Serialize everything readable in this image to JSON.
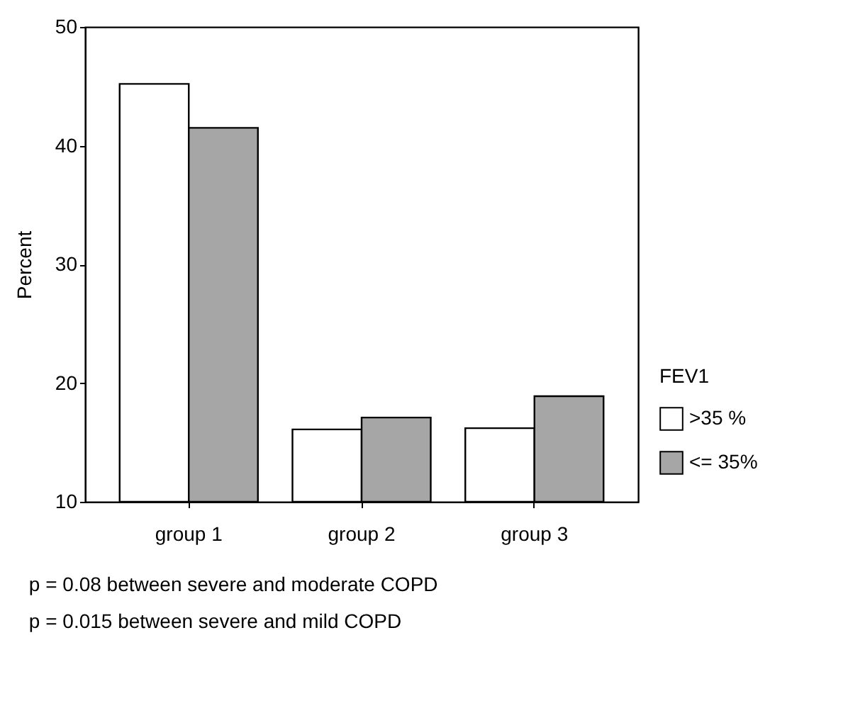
{
  "chart_data": {
    "type": "bar",
    "categories": [
      "group 1",
      "group 2",
      "group 3"
    ],
    "series": [
      {
        "name": ">35 %",
        "color": "#ffffff",
        "values": [
          45.2,
          16.1,
          16.2
        ]
      },
      {
        "name": "<= 35%",
        "color": "#a6a6a6",
        "values": [
          41.5,
          17.1,
          18.9
        ]
      }
    ],
    "ylabel": "Percent",
    "legend_title": "FEV1",
    "legend": "right",
    "ylim": [
      10,
      50
    ],
    "yticks": [
      10,
      20,
      30,
      40,
      50
    ],
    "grid": false,
    "annotations": [
      "p = 0.08 between severe and moderate COPD",
      "p = 0.015 between severe and mild COPD"
    ]
  }
}
